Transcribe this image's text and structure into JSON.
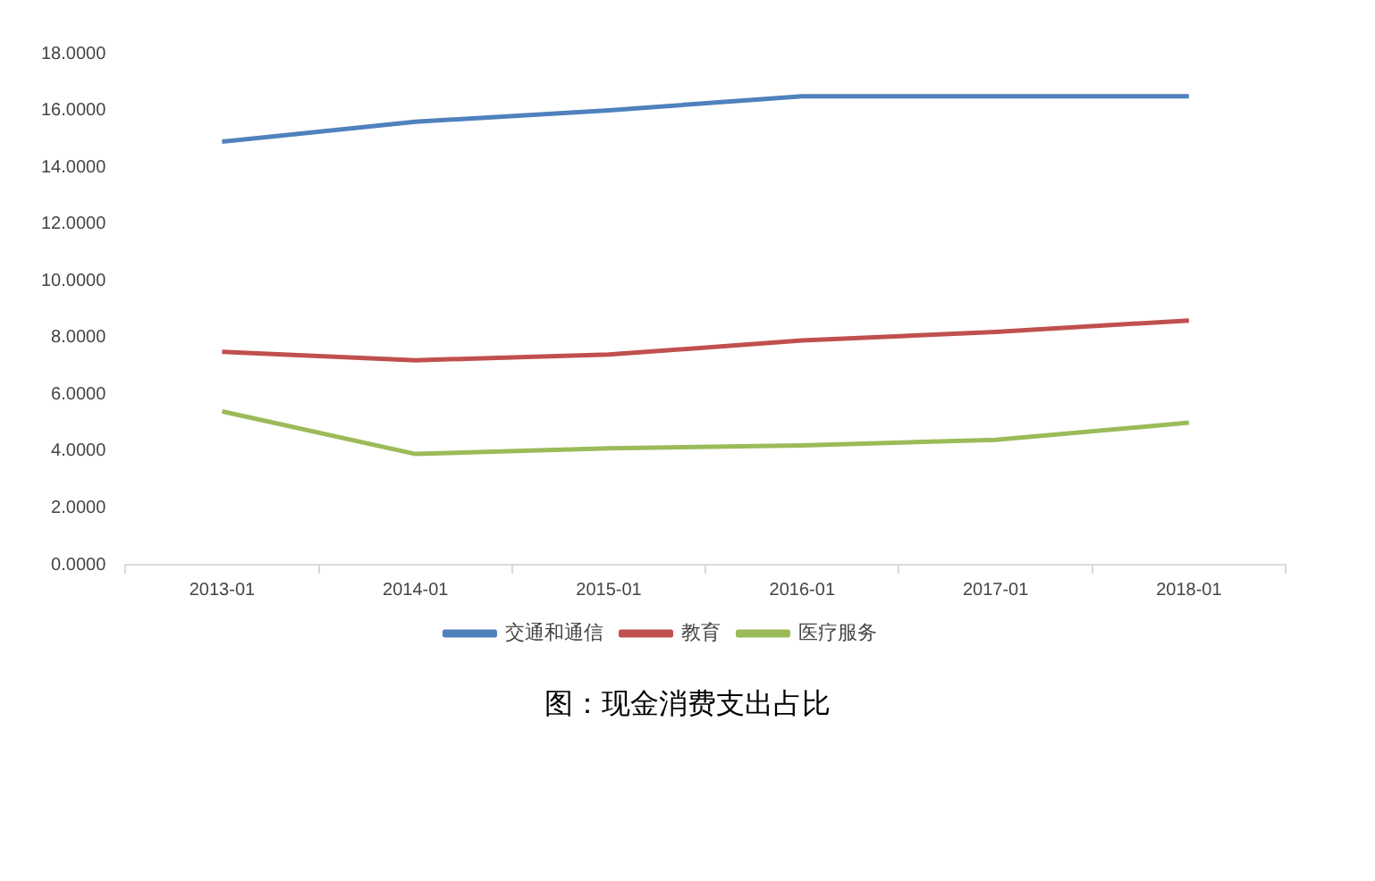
{
  "chart_data": {
    "type": "line",
    "title": "图：现金消费支出占比",
    "categories": [
      "2013-01",
      "2014-01",
      "2015-01",
      "2016-01",
      "2017-01",
      "2018-01"
    ],
    "series": [
      {
        "name": "交通和通信",
        "color": "#4f81bd",
        "values": [
          14.9,
          15.6,
          16.0,
          16.5,
          16.5,
          16.5
        ]
      },
      {
        "name": "教育",
        "color": "#c0504d",
        "values": [
          7.5,
          7.2,
          7.4,
          7.9,
          8.2,
          8.6
        ]
      },
      {
        "name": "医疗服务",
        "color": "#9bbb59",
        "values": [
          5.4,
          3.9,
          4.1,
          4.2,
          4.4,
          5.0
        ]
      }
    ],
    "ylim": [
      0,
      18
    ],
    "yticks": [
      {
        "value": 0,
        "label": "0.0000"
      },
      {
        "value": 2,
        "label": "2.0000"
      },
      {
        "value": 4,
        "label": "4.0000"
      },
      {
        "value": 6,
        "label": "6.0000"
      },
      {
        "value": 8,
        "label": "8.0000"
      },
      {
        "value": 10,
        "label": "10.0000"
      },
      {
        "value": 12,
        "label": "12.0000"
      },
      {
        "value": 14,
        "label": "14.0000"
      },
      {
        "value": 16,
        "label": "16.0000"
      },
      {
        "value": 18,
        "label": "18.0000"
      }
    ],
    "legend": "bottom",
    "marker": "none",
    "line_style": "solid",
    "grid": false
  }
}
